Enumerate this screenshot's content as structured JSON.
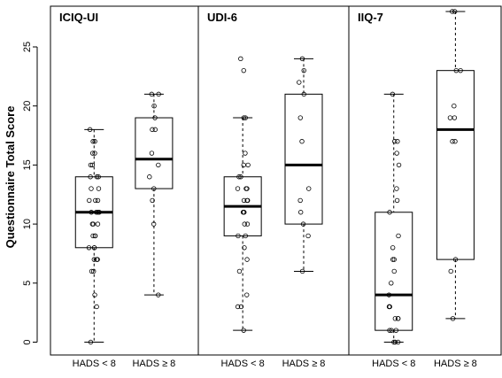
{
  "chart_data": {
    "type": "box",
    "ylabel": "Questionnaire Total Score",
    "ylim": [
      0,
      28
    ],
    "yticks": [
      0,
      5,
      10,
      15,
      20,
      25
    ],
    "grid": false,
    "panels": [
      {
        "title": "ICIQ-UI",
        "groups": [
          {
            "label": "HADS < 8",
            "whisker_low": 0,
            "q1": 8,
            "median": 11,
            "q3": 14,
            "whisker_high": 18,
            "points": [
              0,
              3,
              4,
              6,
              6,
              7,
              7,
              7,
              8,
              8,
              8,
              9,
              9,
              9,
              10,
              10,
              10,
              11,
              11,
              11,
              11,
              12,
              12,
              12,
              13,
              13,
              14,
              14,
              14,
              15,
              15,
              16,
              16,
              17,
              17,
              18
            ]
          },
          {
            "label": "HADS ≥ 8",
            "whisker_low": 4,
            "q1": 13,
            "median": 15.5,
            "q3": 19,
            "whisker_high": 21,
            "points": [
              4,
              10,
              12,
              13,
              14,
              15,
              16,
              18,
              18,
              19,
              20,
              21,
              21
            ]
          }
        ]
      },
      {
        "title": "UDI-6",
        "groups": [
          {
            "label": "HADS < 8",
            "whisker_low": 1,
            "q1": 9,
            "median": 11.5,
            "q3": 14,
            "whisker_high": 19,
            "points": [
              1,
              3,
              3,
              4,
              6,
              7,
              8,
              9,
              9,
              10,
              10,
              11,
              11,
              11,
              12,
              12,
              12,
              13,
              13,
              13,
              14,
              14,
              15,
              15,
              16,
              19,
              19,
              23,
              24
            ]
          },
          {
            "label": "HADS ≥ 8",
            "whisker_low": 6,
            "q1": 10,
            "median": 15,
            "q3": 21,
            "whisker_high": 24,
            "points": [
              6,
              9,
              10,
              11,
              12,
              13,
              17,
              19,
              21,
              22,
              23,
              24
            ]
          }
        ]
      },
      {
        "title": "IIQ-7",
        "groups": [
          {
            "label": "HADS < 8",
            "whisker_low": 0,
            "q1": 1,
            "median": 4,
            "q3": 11,
            "whisker_high": 21,
            "points": [
              0,
              0,
              0,
              1,
              1,
              1,
              2,
              2,
              2,
              3,
              3,
              3,
              4,
              5,
              6,
              7,
              7,
              8,
              9,
              11,
              12,
              13,
              15,
              16,
              17,
              17,
              21
            ]
          },
          {
            "label": "HADS ≥ 8",
            "whisker_low": 2,
            "q1": 7,
            "median": 18,
            "q3": 23,
            "whisker_high": 28,
            "points": [
              2,
              6,
              7,
              17,
              17,
              19,
              19,
              20,
              23,
              23,
              28,
              28
            ]
          }
        ]
      }
    ]
  }
}
